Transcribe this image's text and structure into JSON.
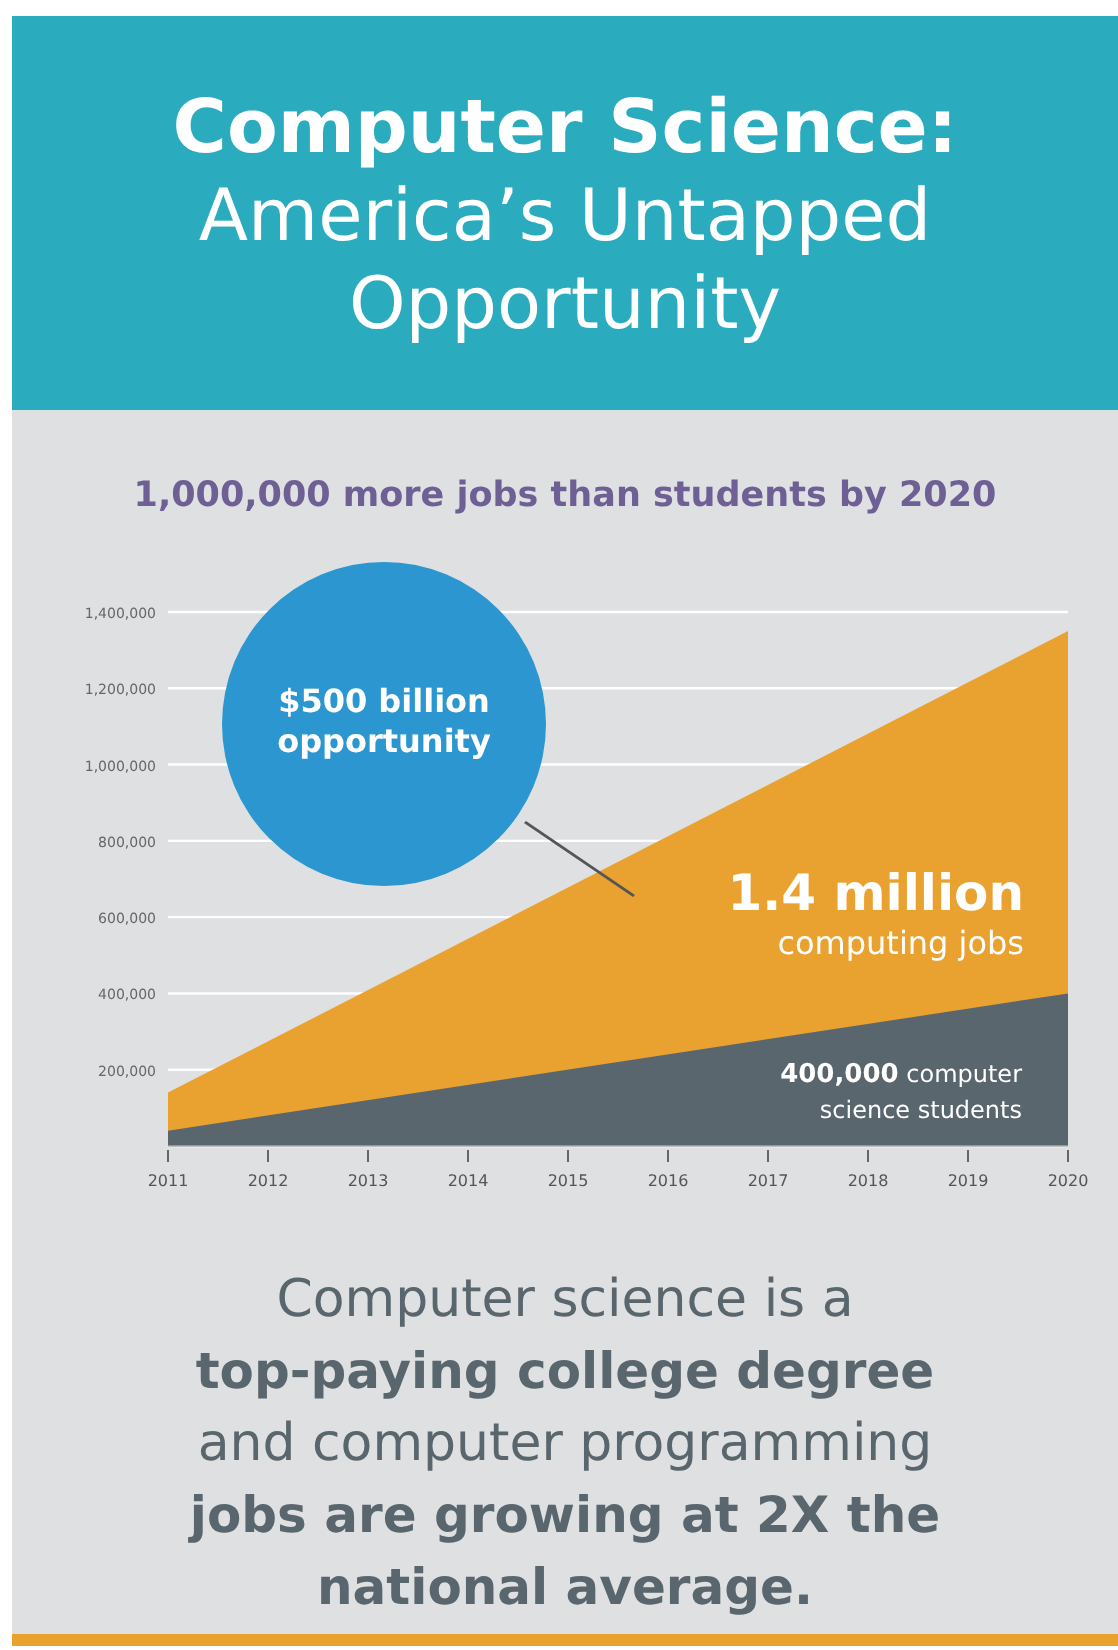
{
  "chart_data": {
    "type": "area",
    "title": "Computer Science: America’s Untapped Opportunity",
    "subtitle": "1,000,000 more jobs than students by 2020",
    "x": [
      2011,
      2020
    ],
    "series": [
      {
        "color": "#e9a22f",
        "values": [
          140000,
          1350000
        ]
      },
      {
        "color": "#5a666d",
        "values": [
          40000,
          400000
        ]
      }
    ],
    "xlim": [
      2011,
      2020
    ],
    "xticks": [
      2011,
      2012,
      2013,
      2014,
      2015,
      2016,
      2017,
      2018,
      2019,
      2020
    ],
    "ylim": [
      0,
      1400000
    ],
    "yticks": [
      {
        "value": 0,
        "label": null
      },
      {
        "value": 200000,
        "label": "200,000"
      },
      {
        "value": 400000,
        "label": "400,000"
      },
      {
        "value": 600000,
        "label": "600,000"
      },
      {
        "value": 800000,
        "label": "800,000"
      },
      {
        "value": 1000000,
        "label": "1,000,000"
      },
      {
        "value": 1200000,
        "label": "1,200,000"
      },
      {
        "value": 1400000,
        "label": "1,400,000"
      }
    ],
    "grid": "y",
    "annotations": [
      "$500 billion opportunity",
      "1.4 million computing jobs",
      "400,000 computer science students",
      "Computer science is a",
      "top-paying college degree",
      "and computer programming",
      "jobs are growing at 2X the",
      "national average."
    ]
  }
}
